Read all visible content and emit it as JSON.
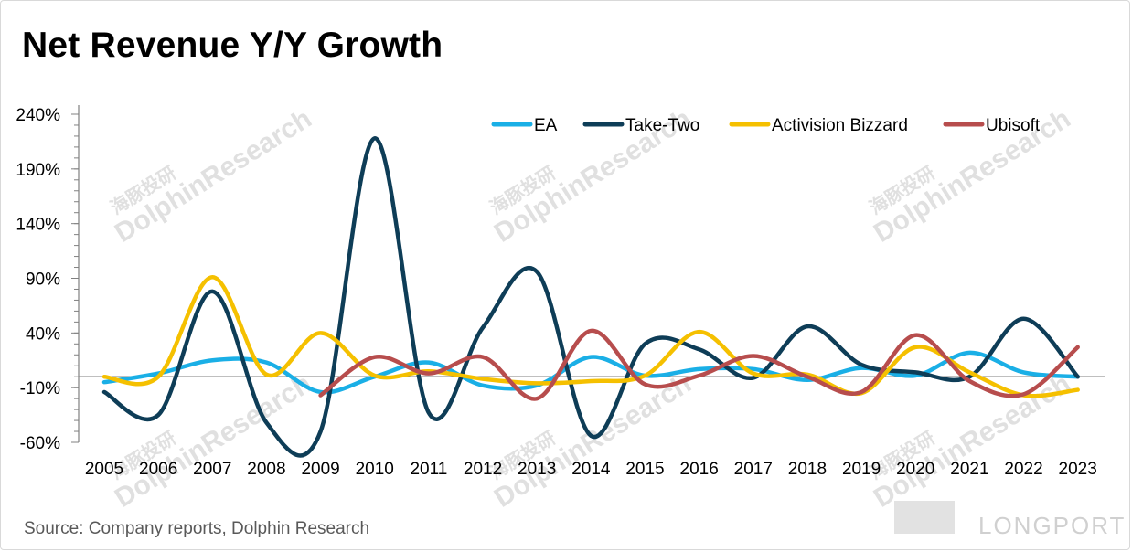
{
  "title": "Net Revenue Y/Y Growth",
  "source": "Source: Company reports, Dolphin Research",
  "watermark": {
    "brand_cn": "海豚投研",
    "brand_en": "DolphinResearch",
    "logo": "LONGPORT"
  },
  "chart_data": {
    "type": "line",
    "title": "Net Revenue Y/Y Growth",
    "xlabel": "",
    "ylabel": "",
    "ylim": [
      -60,
      240
    ],
    "yticks": [
      -60,
      -10,
      40,
      90,
      140,
      190,
      240
    ],
    "ytick_labels": [
      "-60%",
      "-10%",
      "40%",
      "90%",
      "140%",
      "190%",
      "240%"
    ],
    "x": [
      "2005",
      "2006",
      "2007",
      "2008",
      "2009",
      "2010",
      "2011",
      "2012",
      "2013",
      "2014",
      "2015",
      "2016",
      "2017",
      "2018",
      "2019",
      "2020",
      "2021",
      "2022",
      "2023"
    ],
    "legend_position": "top-right",
    "grid": false,
    "series": [
      {
        "name": "EA",
        "color": "#1aafe6",
        "values": [
          -5,
          3,
          15,
          13,
          -14,
          0,
          13,
          -8,
          -8,
          18,
          1,
          7,
          7,
          -3,
          8,
          1,
          22,
          4,
          0
        ]
      },
      {
        "name": "Take-Two",
        "color": "#0e3d57",
        "values": [
          -14,
          -35,
          78,
          -42,
          -50,
          218,
          -33,
          45,
          96,
          -54,
          30,
          25,
          -1,
          46,
          11,
          4,
          0,
          53,
          0
        ]
      },
      {
        "name": "Activision Bizzard",
        "color": "#f5c000",
        "values": [
          0,
          0,
          91,
          2,
          40,
          1,
          5,
          -2,
          -6,
          -4,
          1,
          41,
          3,
          2,
          -15,
          27,
          4,
          -17,
          -12
        ]
      },
      {
        "name": "Ubisoft",
        "color": "#b74d4d",
        "values": [
          null,
          null,
          null,
          null,
          -17,
          18,
          3,
          18,
          -20,
          42,
          -7,
          1,
          19,
          0,
          -14,
          38,
          -4,
          -16,
          27
        ]
      }
    ]
  }
}
